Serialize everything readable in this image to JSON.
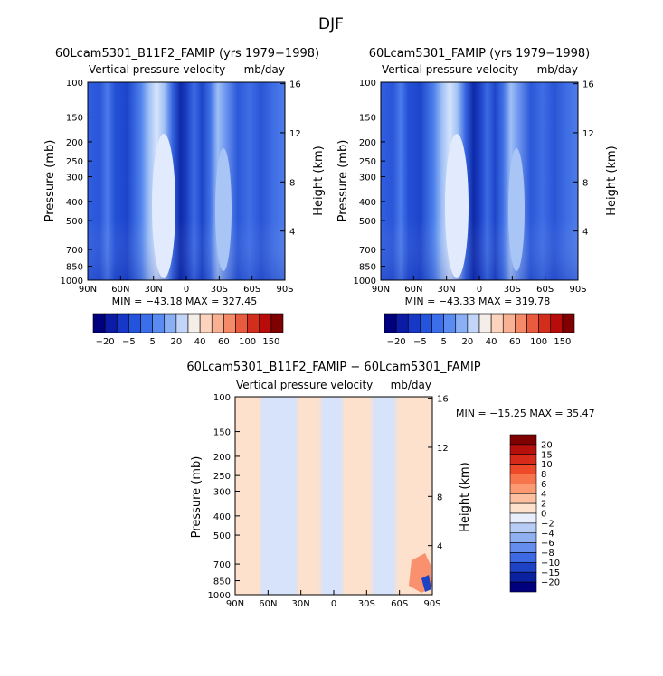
{
  "figure_title": "DJF",
  "panels": [
    {
      "title": "60Lcam5301_B11F2_FAMIP (yrs 1979−1998)",
      "subtitle_left": "Vertical pressure velocity",
      "subtitle_right": "mb/day",
      "stats": "MIN = −43.18   MAX = 327.45"
    },
    {
      "title": "60Lcam5301_FAMIP (yrs 1979−1998)",
      "subtitle_left": "Vertical pressure velocity",
      "subtitle_right": "mb/day",
      "stats": "MIN = −43.33   MAX = 319.78"
    },
    {
      "title": "60Lcam5301_B11F2_FAMIP − 60Lcam5301_FAMIP",
      "subtitle_left": "Vertical pressure velocity",
      "subtitle_right": "mb/day",
      "stats": "MIN = −15.25   MAX =  35.47"
    }
  ],
  "axes": {
    "ylabel": "Pressure (mb)",
    "ylabel_right": "Height (km)",
    "pressure_ticks": [
      "100",
      "150",
      "200",
      "250",
      "300",
      "400",
      "500",
      "700",
      "850",
      "1000"
    ],
    "height_ticks": [
      "4",
      "8",
      "12",
      "16"
    ],
    "lat_ticks": [
      "90N",
      "60N",
      "30N",
      "0",
      "30S",
      "60S",
      "90S"
    ]
  },
  "colorbars": {
    "top_labels": [
      "−20",
      "−5",
      "5",
      "20",
      "40",
      "60",
      "100",
      "150"
    ],
    "top_colors": [
      "#00007f",
      "#0b1ba5",
      "#1737c7",
      "#2453dd",
      "#3a6eea",
      "#5a8bf0",
      "#8aaff4",
      "#c2d5f8",
      "#f5ede8",
      "#fcd3bd",
      "#f8b192",
      "#f38a68",
      "#e85b3e",
      "#d32d1c",
      "#b80c0a",
      "#7f0000"
    ],
    "bottom_labels": [
      "20",
      "15",
      "10",
      "8",
      "6",
      "4",
      "2",
      "0",
      "−2",
      "−4",
      "−6",
      "−8",
      "−10",
      "−15",
      "−20"
    ],
    "bottom_colors": [
      "#7f0000",
      "#b5100c",
      "#d72a1a",
      "#ee4a2a",
      "#f7754d",
      "#fb9a72",
      "#fcbfa0",
      "#fde1cd",
      "#e8eefb",
      "#b8cdf6",
      "#8fb1f2",
      "#658ded",
      "#3d69e3",
      "#1d43c4",
      "#0b22a0",
      "#00007f"
    ]
  },
  "chart_data": [
    {
      "type": "heatmap",
      "title": "60Lcam5301_B11F2_FAMIP (yrs 1979−1998)",
      "variable": "Vertical pressure velocity",
      "units": "mb/day",
      "x_ticks": [
        "90N",
        "60N",
        "30N",
        "0",
        "30S",
        "60S",
        "90S"
      ],
      "y_ticks": [
        100,
        150,
        200,
        250,
        300,
        400,
        500,
        700,
        850,
        1000
      ],
      "y_scale": "log",
      "y2_ticks": [
        4,
        8,
        12,
        16
      ],
      "min": -43.18,
      "max": 327.45,
      "colorbar_levels": [
        -20,
        -5,
        5,
        20,
        40,
        60,
        100,
        150
      ]
    },
    {
      "type": "heatmap",
      "title": "60Lcam5301_FAMIP (yrs 1979−1998)",
      "variable": "Vertical pressure velocity",
      "units": "mb/day",
      "x_ticks": [
        "90N",
        "60N",
        "30N",
        "0",
        "30S",
        "60S",
        "90S"
      ],
      "y_ticks": [
        100,
        150,
        200,
        250,
        300,
        400,
        500,
        700,
        850,
        1000
      ],
      "y_scale": "log",
      "y2_ticks": [
        4,
        8,
        12,
        16
      ],
      "min": -43.33,
      "max": 319.78,
      "colorbar_levels": [
        -20,
        -5,
        5,
        20,
        40,
        60,
        100,
        150
      ]
    },
    {
      "type": "heatmap",
      "title": "60Lcam5301_B11F2_FAMIP − 60Lcam5301_FAMIP",
      "variable": "Vertical pressure velocity",
      "units": "mb/day",
      "x_ticks": [
        "90N",
        "60N",
        "30N",
        "0",
        "30S",
        "60S",
        "90S"
      ],
      "y_ticks": [
        100,
        150,
        200,
        250,
        300,
        400,
        500,
        700,
        850,
        1000
      ],
      "y_scale": "log",
      "y2_ticks": [
        4,
        8,
        12,
        16
      ],
      "min": -15.25,
      "max": 35.47,
      "colorbar_levels": [
        20,
        15,
        10,
        8,
        6,
        4,
        2,
        0,
        -2,
        -4,
        -6,
        -8,
        -10,
        -15,
        -20
      ]
    }
  ]
}
